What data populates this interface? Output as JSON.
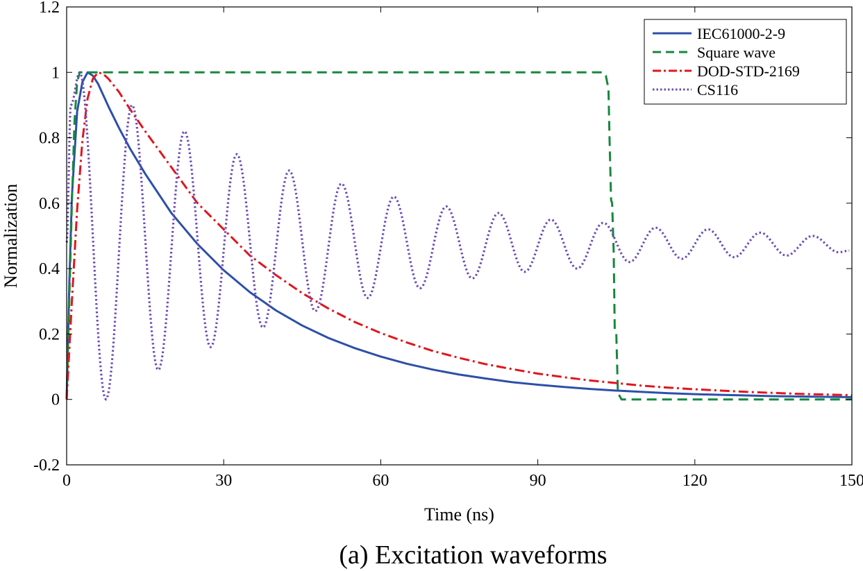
{
  "caption": "(a) Excitation waveforms",
  "chart_data": {
    "type": "line",
    "title": "",
    "xlabel": "Time (ns)",
    "ylabel": "Normalization",
    "xlim": [
      0,
      150
    ],
    "ylim": [
      -0.2,
      1.2
    ],
    "xticks": [
      0,
      30,
      60,
      90,
      120,
      150
    ],
    "xtick_labels": [
      "0",
      "30",
      "60",
      "90",
      "120",
      "150"
    ],
    "yticks": [
      -0.2,
      0,
      0.2,
      0.4,
      0.6,
      0.8,
      1,
      1.2
    ],
    "ytick_labels": [
      "-0.2",
      "0",
      "0.2",
      "0.4",
      "0.6",
      "0.8",
      "1",
      "1.2"
    ],
    "grid": false,
    "legend_position": "top-right",
    "series": [
      {
        "name": "IEC61000-2-9",
        "color": "#2d4fa8",
        "style": "solid",
        "x": [
          0,
          0.5,
          1,
          2,
          3,
          4,
          5,
          6,
          7,
          8,
          10,
          12,
          15,
          20,
          25,
          30,
          35,
          40,
          45,
          50,
          55,
          60,
          65,
          70,
          75,
          80,
          85,
          90,
          95,
          100,
          105,
          110,
          115,
          120,
          125,
          130,
          135,
          140,
          145,
          150
        ],
        "y": [
          0.0,
          0.35,
          0.62,
          0.88,
          0.97,
          1.0,
          0.99,
          0.965,
          0.93,
          0.895,
          0.83,
          0.77,
          0.69,
          0.57,
          0.475,
          0.395,
          0.328,
          0.272,
          0.226,
          0.188,
          0.157,
          0.131,
          0.109,
          0.091,
          0.076,
          0.064,
          0.053,
          0.045,
          0.038,
          0.032,
          0.027,
          0.023,
          0.019,
          0.016,
          0.014,
          0.012,
          0.01,
          0.009,
          0.008,
          0.007
        ]
      },
      {
        "name": "Square wave",
        "color": "#17873d",
        "style": "dashed",
        "x": [
          0,
          0.5,
          1,
          1.5,
          2,
          2.5,
          3,
          102.5,
          103,
          103.5,
          103.7,
          104,
          104.2,
          104.5,
          104.7,
          105,
          105.3,
          106,
          150
        ],
        "y": [
          0.0,
          0.3,
          0.6,
          0.85,
          0.97,
          1.0,
          1.0,
          1.0,
          0.99,
          0.95,
          0.8,
          0.61,
          0.6,
          0.45,
          0.21,
          0.2,
          0.02,
          0.0,
          0.0
        ]
      },
      {
        "name": "DOD-STD-2169",
        "color": "#e0161c",
        "style": "dashdot",
        "x": [
          0,
          1,
          2,
          3,
          4,
          5,
          6,
          7,
          8,
          10,
          12,
          15,
          20,
          25,
          30,
          35,
          40,
          45,
          50,
          55,
          60,
          65,
          70,
          75,
          80,
          85,
          90,
          95,
          100,
          105,
          110,
          115,
          120,
          125,
          130,
          135,
          140,
          145,
          150
        ],
        "y": [
          0.0,
          0.3,
          0.58,
          0.79,
          0.92,
          0.98,
          1.0,
          0.995,
          0.98,
          0.94,
          0.89,
          0.82,
          0.71,
          0.6,
          0.52,
          0.44,
          0.38,
          0.325,
          0.278,
          0.237,
          0.203,
          0.174,
          0.148,
          0.127,
          0.108,
          0.093,
          0.079,
          0.068,
          0.058,
          0.05,
          0.042,
          0.036,
          0.031,
          0.027,
          0.023,
          0.02,
          0.017,
          0.015,
          0.013
        ]
      },
      {
        "name": "CS116",
        "color": "#6a4cb4",
        "style": "dotted",
        "period_ns": 10,
        "baseline": 0.46,
        "x": [
          0,
          0.8,
          2.5,
          7.5,
          12.5,
          17.5,
          22.5,
          27.5,
          32.5,
          37.5,
          42.5,
          47.5,
          52.5,
          57.5,
          62.5,
          67.5,
          72.5,
          77.5,
          82.5,
          87.5,
          92.5,
          97.5,
          102.5,
          107.5,
          112.5,
          117.5,
          122.5,
          127.5,
          132.5,
          137.5,
          142.5,
          147.5,
          149.5
        ],
        "y": [
          0.48,
          0.9,
          1.0,
          0.0,
          0.9,
          0.09,
          0.82,
          0.16,
          0.75,
          0.22,
          0.7,
          0.27,
          0.66,
          0.31,
          0.62,
          0.34,
          0.59,
          0.37,
          0.57,
          0.39,
          0.55,
          0.4,
          0.54,
          0.42,
          0.525,
          0.43,
          0.52,
          0.435,
          0.51,
          0.44,
          0.5,
          0.45,
          0.455
        ]
      }
    ]
  }
}
